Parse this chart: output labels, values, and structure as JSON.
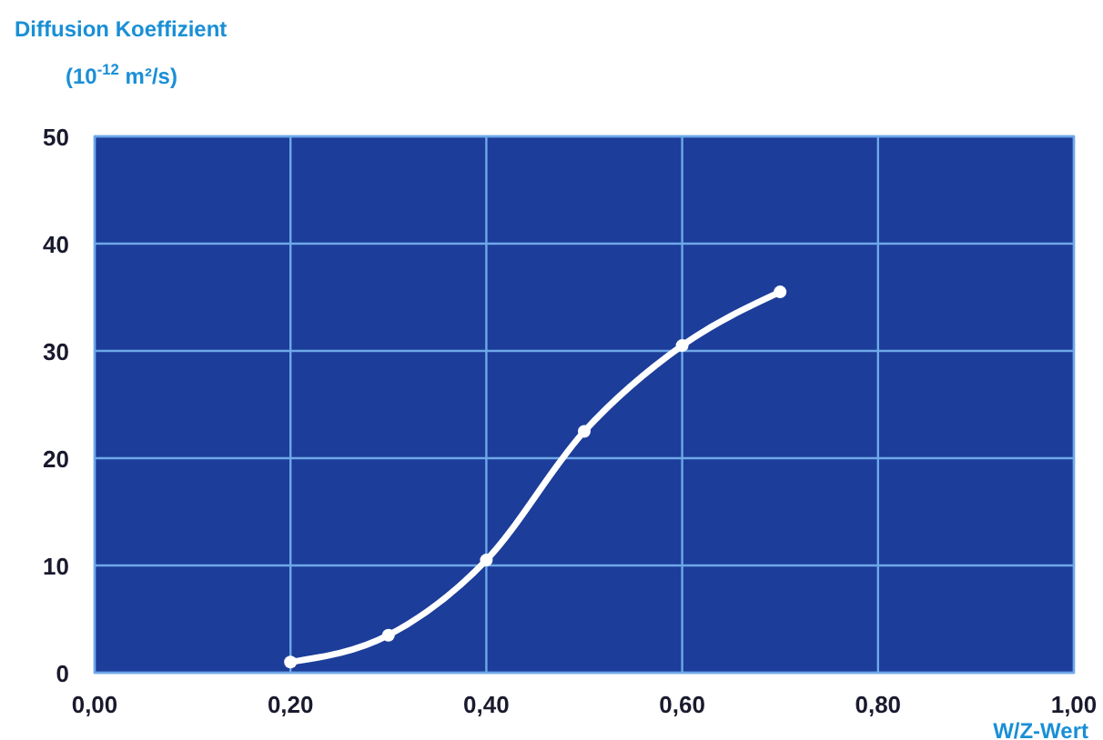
{
  "chart_data": {
    "type": "line",
    "ylabel": "Diffusion Koeffizient\n(10$^{-12}$ m²/s)",
    "xlabel": "W/Z-Wert",
    "x": [
      0.2,
      0.3,
      0.4,
      0.5,
      0.6,
      0.7
    ],
    "series": [
      {
        "color": "#ffffff",
        "values": [
          1,
          3.5,
          10.5,
          22.5,
          30.5,
          35.5
        ]
      }
    ],
    "xlim": [
      0,
      1
    ],
    "xticks": [
      {
        "value": 0,
        "label": "0,00"
      },
      {
        "value": 0.2,
        "label": "0,20"
      },
      {
        "value": 0.4,
        "label": "0,40"
      },
      {
        "value": 0.6,
        "label": "0,60"
      },
      {
        "value": 0.8,
        "label": "0,80"
      },
      {
        "value": 1,
        "label": "1,00"
      }
    ],
    "ylim": [
      0,
      50
    ],
    "yticks": [
      0,
      10,
      20,
      30,
      40,
      50
    ],
    "grid": true,
    "marker": "circle",
    "line_style": "solid"
  }
}
